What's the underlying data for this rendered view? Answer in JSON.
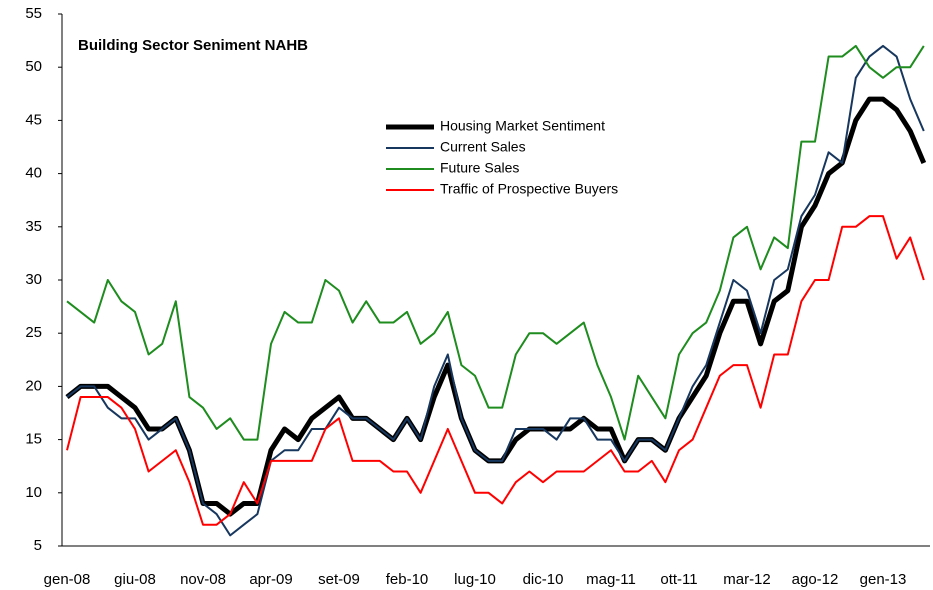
{
  "chart_data": {
    "type": "line",
    "title": "Building Sector Seniment NAHB",
    "categories": [
      "gen-08",
      null,
      null,
      null,
      null,
      "giu-08",
      null,
      null,
      null,
      null,
      "nov-08",
      null,
      null,
      null,
      null,
      "apr-09",
      null,
      null,
      null,
      null,
      "set-09",
      null,
      null,
      null,
      null,
      "feb-10",
      null,
      null,
      null,
      null,
      "lug-10",
      null,
      null,
      null,
      null,
      "dic-10",
      null,
      null,
      null,
      null,
      "mag-11",
      null,
      null,
      null,
      null,
      "ott-11",
      null,
      null,
      null,
      null,
      "mar-12",
      null,
      null,
      null,
      null,
      "ago-12",
      null,
      null,
      null,
      null,
      "gen-13",
      null,
      null,
      null
    ],
    "series": [
      {
        "name": "Housing Market Sentiment",
        "color": "#000000",
        "width": 5,
        "values": [
          19,
          20,
          20,
          20,
          19,
          18,
          16,
          16,
          17,
          14,
          9,
          9,
          8,
          9,
          9,
          14,
          16,
          15,
          17,
          18,
          19,
          17,
          17,
          16,
          15,
          17,
          15,
          19,
          22,
          17,
          14,
          13,
          13,
          15,
          16,
          16,
          16,
          16,
          17,
          16,
          16,
          13,
          15,
          15,
          14,
          17,
          19,
          21,
          25,
          28,
          28,
          24,
          28,
          29,
          35,
          37,
          40,
          41,
          45,
          47,
          47,
          46,
          44,
          41
        ]
      },
      {
        "name": "Current Sales",
        "color": "#17375e",
        "width": 2,
        "values": [
          19,
          20,
          20,
          18,
          17,
          17,
          15,
          16,
          17,
          14,
          9,
          8,
          6,
          7,
          8,
          13,
          14,
          14,
          16,
          16,
          18,
          17,
          17,
          16,
          15,
          17,
          15,
          20,
          23,
          17,
          14,
          13,
          13,
          16,
          16,
          16,
          15,
          17,
          17,
          15,
          15,
          13,
          15,
          15,
          14,
          17,
          20,
          22,
          26,
          30,
          29,
          25,
          30,
          31,
          36,
          38,
          42,
          41,
          49,
          51,
          52,
          51,
          47,
          44
        ]
      },
      {
        "name": "Future Sales",
        "color": "#1e8c1e",
        "width": 2,
        "values": [
          28,
          27,
          26,
          30,
          28,
          27,
          23,
          24,
          28,
          19,
          18,
          16,
          17,
          15,
          15,
          24,
          27,
          26,
          26,
          30,
          29,
          26,
          28,
          26,
          26,
          27,
          24,
          25,
          27,
          22,
          21,
          18,
          18,
          23,
          25,
          25,
          24,
          25,
          26,
          22,
          19,
          15,
          21,
          19,
          17,
          23,
          25,
          26,
          29,
          34,
          35,
          31,
          34,
          33,
          43,
          43,
          51,
          51,
          52,
          50,
          49,
          50,
          50,
          52
        ]
      },
      {
        "name": "Traffic of Prospective Buyers",
        "color": "#ff0000",
        "width": 2,
        "values": [
          14,
          19,
          19,
          19,
          18,
          16,
          12,
          13,
          14,
          11,
          7,
          7,
          8,
          11,
          9,
          13,
          13,
          13,
          13,
          16,
          17,
          13,
          13,
          13,
          12,
          12,
          10,
          13,
          16,
          13,
          10,
          10,
          9,
          11,
          12,
          11,
          12,
          12,
          12,
          13,
          14,
          12,
          12,
          13,
          11,
          14,
          15,
          18,
          21,
          22,
          22,
          18,
          23,
          23,
          28,
          30,
          30,
          35,
          35,
          36,
          36,
          32,
          34,
          30
        ]
      }
    ],
    "ylim": [
      5,
      55
    ],
    "yticks": [
      5,
      10,
      15,
      20,
      25,
      30,
      35,
      40,
      45,
      50,
      55
    ],
    "grid": false
  }
}
